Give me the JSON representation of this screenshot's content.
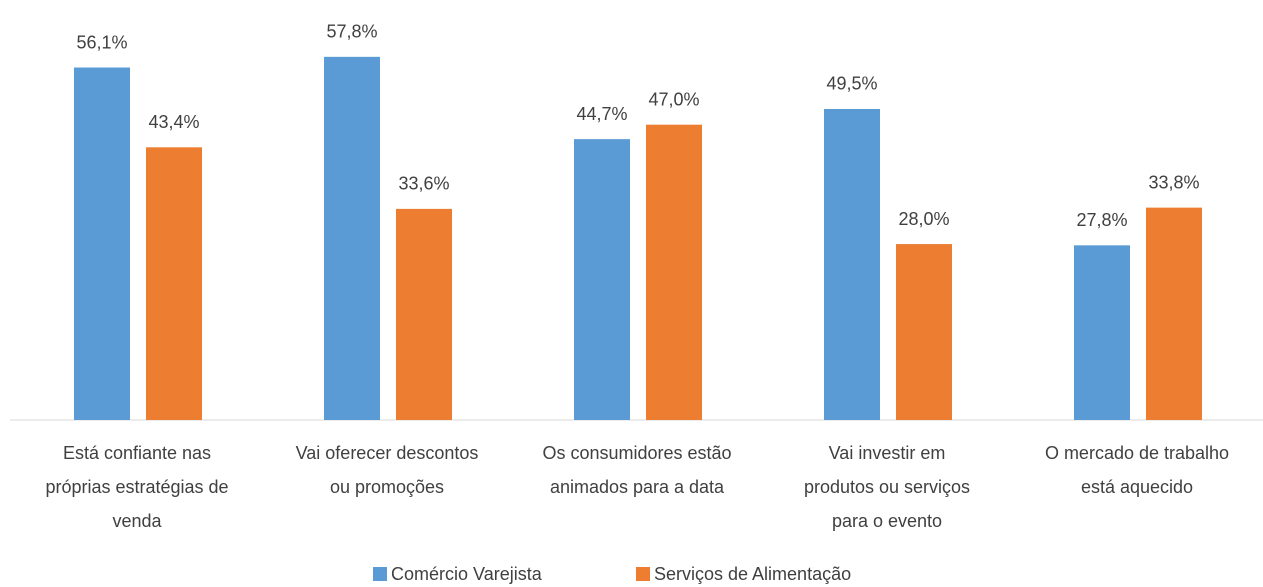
{
  "chart_data": {
    "type": "bar",
    "categories": [
      "Está confiante nas\npróprias estratégias de\nvenda",
      "Vai oferecer descontos\nou promoções",
      "Os consumidores estão\nanimados para a data",
      "Vai investir em\nprodutos ou serviços\npara o evento",
      "O mercado de trabalho\nestá aquecido"
    ],
    "series": [
      {
        "name": "Comércio Varejista",
        "color": "#5b9bd5",
        "values": [
          56.1,
          57.8,
          44.7,
          49.5,
          27.8
        ],
        "value_labels": [
          "56,1%",
          "57,8%",
          "44,7%",
          "49,5%",
          "27,8%"
        ]
      },
      {
        "name": "Serviços de Alimentação",
        "color": "#ed7d31",
        "values": [
          43.4,
          33.6,
          47.0,
          28.0,
          33.8
        ],
        "value_labels": [
          "43,4%",
          "33,6%",
          "47,0%",
          "28,0%",
          "33,8%"
        ]
      }
    ],
    "ylim": [
      0,
      60
    ],
    "legend": "bottom"
  }
}
